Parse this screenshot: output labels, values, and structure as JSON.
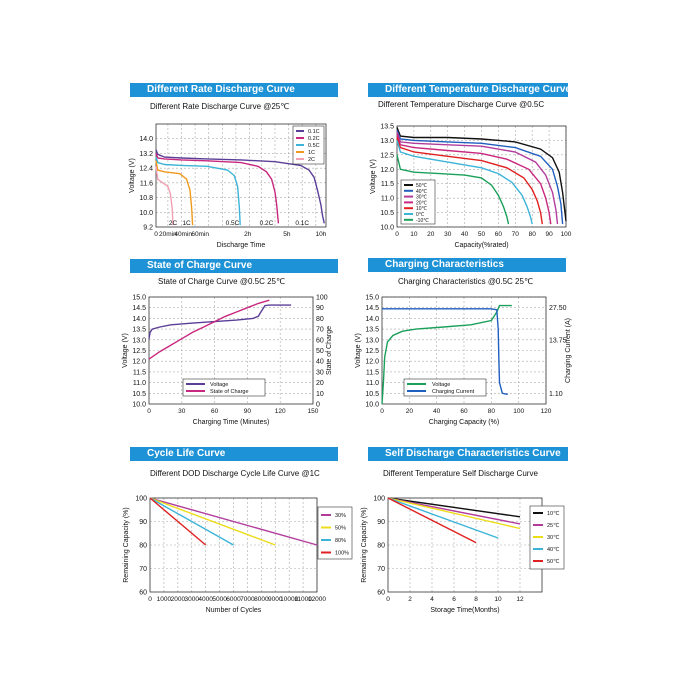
{
  "colors": {
    "header_bg": "#1e92d6",
    "grid": "#aaaaaa",
    "purple": "#5a3e98",
    "magenta": "#c8287e",
    "cyan": "#3cb4d8",
    "orange": "#ef9a1c",
    "pink": "#f2a0b4",
    "black": "#111111",
    "blue": "#1f5fc0",
    "red": "#e02020",
    "green": "#1aa05a",
    "violet": "#b23c9c",
    "yellow": "#eddc18"
  },
  "panels": {
    "rate": {
      "header": "Different Rate Discharge Curve",
      "subtitle": "Different Rate Discharge Curve @25℃"
    },
    "temp": {
      "header": "Different Temperature Discharge Curve",
      "subtitle": "Different Temperature Discharge Curve @0.5C"
    },
    "soc": {
      "header": "State of Charge Curve",
      "subtitle": "State of Charge Curve @0.5C 25℃"
    },
    "charging": {
      "header": "Charging Characteristics",
      "subtitle": "Charging Characteristics @0.5C 25℃"
    },
    "cycle": {
      "header": "Cycle Life Curve",
      "subtitle": "Different DOD Discharge Cycle Life Curve @1C"
    },
    "self": {
      "header": "Self Discharge Characteristics Curve",
      "subtitle": "Different Temperature Self Discharge Curve"
    }
  },
  "chart_data": [
    {
      "id": "rate",
      "type": "line",
      "title": "Different Rate Discharge Curve @25℃",
      "xlabel": "Discharge Time",
      "ylabel": "Voltage (V)",
      "ylim": [
        9.2,
        14.8
      ],
      "yticks": [
        9.2,
        10.0,
        10.8,
        11.6,
        12.4,
        13.2,
        14.0
      ],
      "ytick_labels": [
        "9.2",
        "10.0",
        "10.8",
        "11.6",
        "12.4",
        "13.2",
        "14.0"
      ],
      "xlim": [
        0,
        100
      ],
      "xticks": [
        0,
        7,
        15,
        23,
        31,
        39,
        47,
        55,
        62,
        70,
        78,
        86,
        94
      ],
      "x_tick_labels": [
        "0",
        "20min",
        "40min",
        "60min",
        "2h",
        "5h",
        "10h"
      ],
      "x_tick_label_pos": [
        0,
        7,
        16,
        26,
        54,
        77,
        97
      ],
      "grid": true,
      "legend_position": "top-right",
      "legend_entries": [
        "0.1C",
        "0.2C",
        "0.5C",
        "1C",
        "2C"
      ],
      "series": [
        {
          "name": "0.1C",
          "color": "#5a3e98",
          "x": [
            0,
            1,
            5,
            15,
            30,
            50,
            70,
            85,
            90,
            93,
            95,
            97,
            98,
            99
          ],
          "y": [
            13.4,
            13.15,
            13.0,
            12.95,
            12.9,
            12.85,
            12.75,
            12.55,
            12.3,
            11.9,
            11.2,
            10.4,
            9.8,
            9.4
          ]
        },
        {
          "name": "0.2C",
          "color": "#c8287e",
          "x": [
            0,
            1,
            5,
            15,
            30,
            50,
            60,
            65,
            68,
            70,
            71,
            72
          ],
          "y": [
            13.2,
            12.95,
            12.9,
            12.85,
            12.8,
            12.7,
            12.5,
            12.2,
            11.8,
            11.1,
            10.4,
            9.4
          ]
        },
        {
          "name": "0.5C",
          "color": "#3cb4d8",
          "x": [
            0,
            1,
            5,
            15,
            30,
            42,
            46,
            48,
            49,
            49.5
          ],
          "y": [
            13.0,
            12.7,
            12.6,
            12.55,
            12.5,
            12.3,
            12.0,
            11.4,
            10.3,
            9.3
          ]
        },
        {
          "name": "1C",
          "color": "#ef9a1c",
          "x": [
            0,
            1,
            5,
            14,
            18,
            20,
            21,
            21.5
          ],
          "y": [
            12.8,
            12.3,
            12.2,
            12.1,
            11.8,
            11.2,
            10.2,
            9.3
          ]
        },
        {
          "name": "2C",
          "color": "#f2a0b4",
          "x": [
            0,
            1,
            4,
            7,
            8.5,
            9.5,
            10
          ],
          "y": [
            12.5,
            11.8,
            11.6,
            11.4,
            11.0,
            10.2,
            9.3
          ]
        }
      ],
      "annotations": [
        "2C",
        "1C",
        "0.5C",
        "0.2C",
        "0.1C"
      ],
      "annotation_x": [
        10,
        18,
        45,
        65,
        86
      ]
    },
    {
      "id": "temp",
      "type": "line",
      "title": "Different Temperature Discharge Curve @0.5C",
      "xlabel": "Capacity(%rated)",
      "ylabel": "Voltage (V)",
      "xlim": [
        0,
        100
      ],
      "xticks": [
        0,
        10,
        20,
        30,
        40,
        50,
        60,
        70,
        80,
        90,
        100
      ],
      "ylim": [
        10.0,
        13.5
      ],
      "yticks": [
        10.0,
        10.5,
        11.0,
        11.5,
        12.0,
        12.5,
        13.0,
        13.5
      ],
      "grid": true,
      "legend_position": "bottom-left",
      "legend_entries": [
        "50℃",
        "40℃",
        "30℃",
        "20℃",
        "10℃",
        "0℃",
        "-10℃"
      ],
      "series": [
        {
          "name": "50℃",
          "color": "#111111",
          "x": [
            0,
            2,
            10,
            30,
            50,
            70,
            85,
            92,
            96,
            98,
            100
          ],
          "y": [
            13.45,
            13.15,
            13.1,
            13.1,
            13.05,
            12.95,
            12.7,
            12.4,
            11.9,
            11.2,
            10.2
          ]
        },
        {
          "name": "40℃",
          "color": "#1f5fc0",
          "x": [
            0,
            2,
            10,
            30,
            50,
            70,
            85,
            92,
            95,
            97,
            98
          ],
          "y": [
            13.35,
            13.05,
            13.0,
            12.95,
            12.9,
            12.75,
            12.45,
            12.0,
            11.4,
            10.8,
            10.1
          ]
        },
        {
          "name": "30℃",
          "color": "#b23c9c",
          "x": [
            0,
            2,
            10,
            30,
            50,
            70,
            82,
            88,
            92,
            94,
            95
          ],
          "y": [
            13.3,
            12.95,
            12.9,
            12.85,
            12.8,
            12.6,
            12.25,
            11.8,
            11.2,
            10.6,
            10.1
          ]
        },
        {
          "name": "20℃",
          "color": "#c8287e",
          "x": [
            0,
            2,
            10,
            30,
            50,
            65,
            78,
            85,
            88,
            90,
            91
          ],
          "y": [
            13.2,
            12.85,
            12.75,
            12.65,
            12.55,
            12.35,
            12.0,
            11.5,
            11.0,
            10.5,
            10.1
          ]
        },
        {
          "name": "10℃",
          "color": "#e02020",
          "x": [
            0,
            2,
            10,
            30,
            50,
            65,
            75,
            80,
            83,
            85,
            86
          ],
          "y": [
            13.1,
            12.75,
            12.6,
            12.45,
            12.3,
            12.05,
            11.7,
            11.3,
            10.9,
            10.5,
            10.1
          ]
        },
        {
          "name": "0℃",
          "color": "#3cb4d8",
          "x": [
            0,
            2,
            10,
            30,
            50,
            60,
            68,
            74,
            77,
            79,
            80
          ],
          "y": [
            13.0,
            12.6,
            12.45,
            12.25,
            12.05,
            11.85,
            11.55,
            11.1,
            10.7,
            10.35,
            10.1
          ]
        },
        {
          "name": "-10℃",
          "color": "#1aa05a",
          "x": [
            0,
            2,
            10,
            25,
            40,
            50,
            56,
            60,
            63,
            65,
            66
          ],
          "y": [
            12.5,
            12.0,
            11.9,
            11.85,
            11.8,
            11.7,
            11.45,
            11.1,
            10.7,
            10.35,
            10.1
          ]
        }
      ]
    },
    {
      "id": "soc",
      "type": "line",
      "title": "State of Charge Curve @0.5C 25℃",
      "xlabel": "Charging Time (Minutes)",
      "ylabel": "Voltage (V)",
      "y2label": "State of Charge",
      "xlim": [
        0,
        150
      ],
      "xticks": [
        0,
        30,
        60,
        90,
        120,
        150
      ],
      "ylim": [
        10.0,
        15.0
      ],
      "yticks": [
        10.0,
        10.5,
        11.0,
        11.5,
        12.0,
        12.5,
        13.0,
        13.5,
        14.0,
        14.5,
        15.0
      ],
      "y2lim": [
        0,
        100
      ],
      "y2ticks": [
        0,
        10,
        20,
        30,
        40,
        50,
        60,
        70,
        80,
        90,
        100
      ],
      "grid": true,
      "legend_position": "bottom-center",
      "legend_entries": [
        "Voltage",
        "State of Charge"
      ],
      "series": [
        {
          "name": "Voltage",
          "axis": "left",
          "color": "#5a3e98",
          "x": [
            0,
            1,
            3,
            10,
            20,
            40,
            60,
            80,
            95,
            100,
            103,
            106,
            110,
            130
          ],
          "y": [
            13.05,
            13.35,
            13.5,
            13.6,
            13.7,
            13.78,
            13.85,
            13.92,
            14.0,
            14.1,
            14.35,
            14.6,
            14.62,
            14.62
          ]
        },
        {
          "name": "State of Charge",
          "axis": "right",
          "color": "#c8287e",
          "x": [
            0,
            10,
            20,
            30,
            40,
            50,
            60,
            70,
            80,
            90,
            100,
            110
          ],
          "y": [
            42,
            49,
            55,
            61,
            67,
            72,
            77,
            82,
            86,
            90,
            94,
            97
          ]
        }
      ]
    },
    {
      "id": "charging",
      "type": "line",
      "title": "Charging Characteristics @0.5C 25℃",
      "xlabel": "Charging Capacity (%)",
      "ylabel": "Voltage (V)",
      "y2label": "Charging Current (A)",
      "xlim": [
        0,
        120
      ],
      "xticks": [
        0,
        20,
        40,
        60,
        80,
        100,
        120
      ],
      "ylim": [
        10.0,
        15.0
      ],
      "yticks": [
        10.0,
        10.5,
        11.0,
        11.5,
        12.0,
        12.5,
        13.0,
        13.5,
        14.0,
        14.5,
        15.0
      ],
      "y2_ticks_labels": [
        "27.50",
        "13.75",
        "1.10"
      ],
      "grid": true,
      "legend_position": "bottom-center",
      "legend_entries": [
        "Voltage",
        "Charging Current"
      ],
      "series": [
        {
          "name": "Voltage",
          "color": "#1aa05a",
          "x": [
            0,
            1,
            2,
            4,
            8,
            15,
            25,
            45,
            65,
            80,
            84,
            86,
            90,
            95
          ],
          "y": [
            10.0,
            11.0,
            12.2,
            12.9,
            13.2,
            13.4,
            13.5,
            13.6,
            13.7,
            13.9,
            14.3,
            14.6,
            14.6,
            14.6
          ]
        },
        {
          "name": "Charging Current",
          "color": "#1f5fc0",
          "x": [
            0,
            20,
            40,
            60,
            80,
            84,
            85,
            85.5,
            86,
            88,
            92
          ],
          "y": [
            14.45,
            14.45,
            14.45,
            14.45,
            14.45,
            14.4,
            13.5,
            12.0,
            11.0,
            10.5,
            10.45
          ]
        }
      ]
    },
    {
      "id": "cycle",
      "type": "line",
      "title": "Different DOD Discharge Cycle Life Curve @1C",
      "xlabel": "Number of Cycles",
      "ylabel": "Remaining Capacity (%)",
      "xlim": [
        0,
        12000
      ],
      "xticks": [
        0,
        1000,
        2000,
        3000,
        4000,
        5000,
        6000,
        7000,
        8000,
        9000,
        10000,
        11000,
        12000
      ],
      "ylim": [
        60,
        100
      ],
      "yticks": [
        60,
        70,
        80,
        90,
        100
      ],
      "grid": true,
      "legend_position": "right",
      "legend_entries": [
        "30%",
        "50%",
        "80%",
        "100%"
      ],
      "series": [
        {
          "name": "30%",
          "color": "#b23c9c",
          "x": [
            0,
            12000
          ],
          "y": [
            100,
            80
          ]
        },
        {
          "name": "50%",
          "color": "#eddc18",
          "x": [
            0,
            9000
          ],
          "y": [
            100,
            80
          ]
        },
        {
          "name": "80%",
          "color": "#3cb4d8",
          "x": [
            0,
            6000
          ],
          "y": [
            100,
            80
          ]
        },
        {
          "name": "100%",
          "color": "#e02020",
          "x": [
            0,
            4000
          ],
          "y": [
            100,
            80
          ]
        }
      ]
    },
    {
      "id": "self",
      "type": "line",
      "title": "Different Temperature Self Discharge Curve",
      "xlabel": "Storage Time(Months)",
      "ylabel": "Remaining Capacity (%)",
      "xlim": [
        0,
        14
      ],
      "xticks": [
        0,
        2,
        4,
        6,
        8,
        10,
        12
      ],
      "ylim": [
        60,
        100
      ],
      "yticks": [
        60,
        70,
        80,
        90,
        100
      ],
      "grid": true,
      "legend_position": "right",
      "legend_entries": [
        "10℃",
        "25℃",
        "30℃",
        "40℃",
        "50℃"
      ],
      "series": [
        {
          "name": "10℃",
          "color": "#111111",
          "x": [
            0,
            12
          ],
          "y": [
            100,
            92
          ]
        },
        {
          "name": "25℃",
          "color": "#b23c9c",
          "x": [
            0,
            12
          ],
          "y": [
            100,
            89
          ]
        },
        {
          "name": "30℃",
          "color": "#eddc18",
          "x": [
            0,
            12
          ],
          "y": [
            100,
            87
          ]
        },
        {
          "name": "40℃",
          "color": "#3cb4d8",
          "x": [
            0,
            10
          ],
          "y": [
            100,
            83
          ]
        },
        {
          "name": "50℃",
          "color": "#e02020",
          "x": [
            0,
            8
          ],
          "y": [
            100,
            81
          ]
        }
      ]
    }
  ]
}
